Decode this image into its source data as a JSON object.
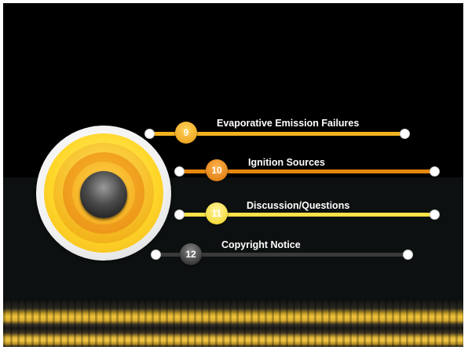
{
  "agenda": {
    "items": [
      {
        "number": "9",
        "title": "Evaporative Emission Failures",
        "color": "#f3b21e"
      },
      {
        "number": "10",
        "title": "Ignition Sources",
        "color": "#e8870f"
      },
      {
        "number": "11",
        "title": "Discussion/Questions",
        "color": "#ffe24a"
      },
      {
        "number": "12",
        "title": "Copyright Notice",
        "color": "#3a3a3a"
      }
    ]
  },
  "icons": {
    "dial": "concentric-circle-dial-icon",
    "road": "road-stripes-image"
  }
}
